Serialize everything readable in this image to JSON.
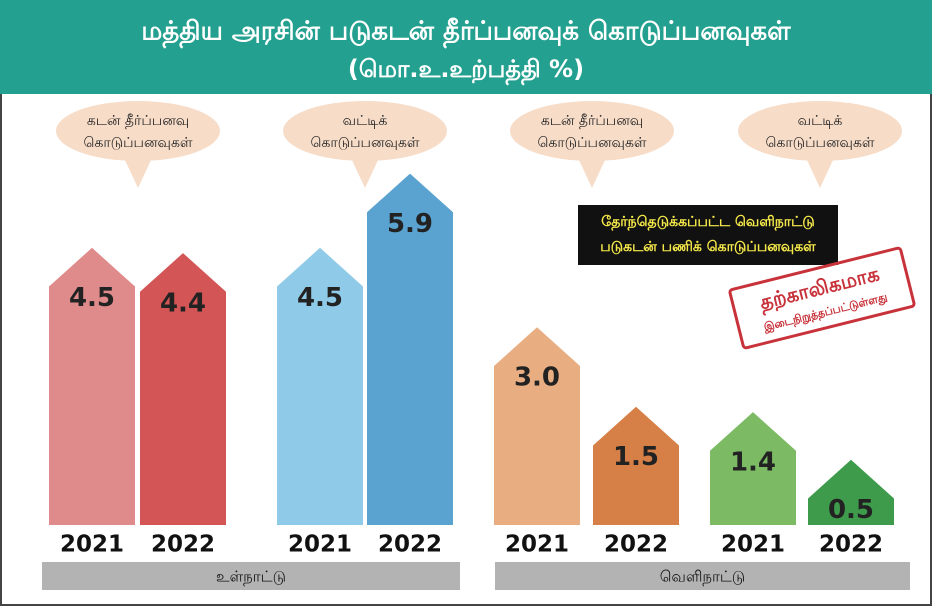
{
  "chart_data": {
    "type": "bar",
    "title": "மத்திய அரசின் படுகடன் தீர்ப்பனவுக் கொடுப்பனவுகள்",
    "subtitle": "(மொ.உ.உற்பத்தி %)",
    "categories": [
      "2021",
      "2022",
      "2021",
      "2022",
      "2021",
      "2022",
      "2021",
      "2022"
    ],
    "values": [
      4.5,
      4.4,
      4.5,
      5.9,
      3.0,
      1.5,
      1.4,
      0.5
    ],
    "value_labels": [
      "4.5",
      "4.4",
      "4.5",
      "5.9",
      "3.0",
      "1.5",
      "1.4",
      "0.5"
    ],
    "colors": [
      "#e08b8b",
      "#d35555",
      "#8fcbe8",
      "#5aa2d0",
      "#e8ae82",
      "#d68047",
      "#7cba64",
      "#3f9b4c"
    ],
    "groups": [
      "உள்நாட்டு",
      "வெளிநாட்டு"
    ],
    "callouts": [
      [
        "கடன் தீர்ப்பனவு",
        "கொடுப்பனவுகள்"
      ],
      [
        "வட்டிக்",
        "கொடுப்பனவுகள்"
      ],
      [
        "கடன் தீர்ப்பனவு",
        "கொடுப்பனவுகள்"
      ],
      [
        "வட்டிக்",
        "கொடுப்பனவுகள்"
      ]
    ],
    "notice": [
      "தேர்ந்தெடுக்கப்பட்ட வெளிநாட்டு",
      "படுகடன் பணிக் கொடுப்பனவுகள்"
    ],
    "stamp": [
      "தற்காலிகமாக",
      "இடைநிறுத்தப்பட்டுள்ளது"
    ]
  }
}
